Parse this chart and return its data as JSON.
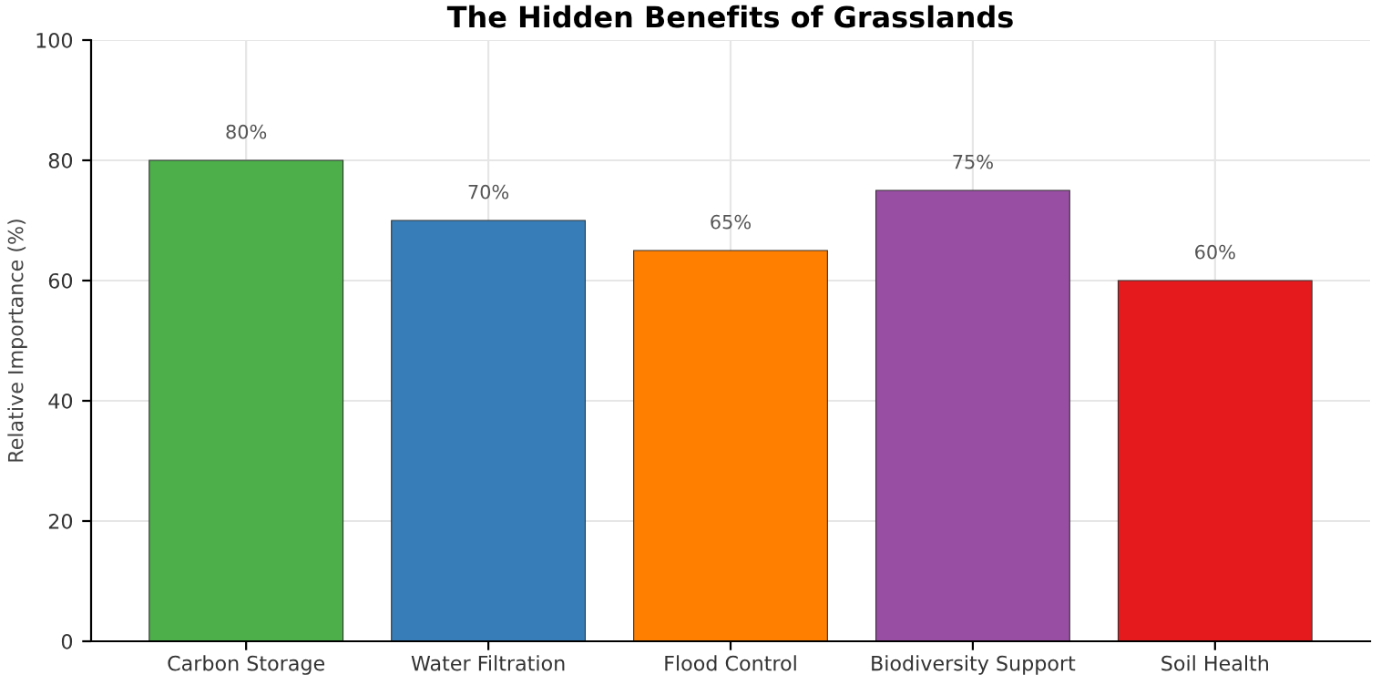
{
  "chart_data": {
    "type": "bar",
    "title": "The Hidden Benefits of Grasslands",
    "ylabel": "Relative Importance (%)",
    "categories": [
      "Carbon Storage",
      "Water Filtration",
      "Flood Control",
      "Biodiversity Support",
      "Soil Health"
    ],
    "values": [
      80,
      70,
      65,
      75,
      60
    ],
    "colors": [
      "#4daf4a",
      "#377eb8",
      "#ff7f00",
      "#984ea3",
      "#e41a1c"
    ],
    "value_labels": [
      "80%",
      "70%",
      "65%",
      "75%",
      "60%"
    ],
    "ylim": [
      0,
      100
    ],
    "yticks": [
      0,
      20,
      40,
      60,
      80,
      100
    ],
    "grid": true
  }
}
